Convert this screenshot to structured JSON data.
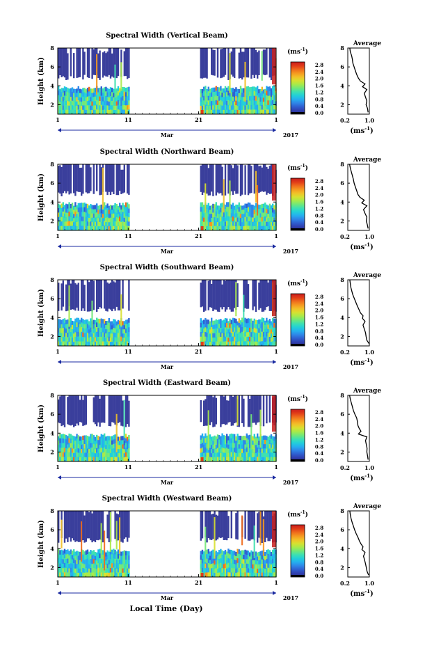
{
  "figure": {
    "xlabel": "Local Time (Day)",
    "colorbar_unit": "(ms",
    "unit_exp": "-1",
    "unit_close": ")",
    "month_label": "Mar",
    "year_label": "2017",
    "profile_title": "Average",
    "profile_xlabel_base": "(ms",
    "profile_xlabel_exp": "-1",
    "profile_xlabel_close": ")"
  },
  "colors": {
    "colormap": [
      "#2b2d8a",
      "#3040b0",
      "#2f5fd0",
      "#2f86e8",
      "#25b0ee",
      "#22d0d8",
      "#3fe0b0",
      "#72e878",
      "#a8ea4a",
      "#d8e030",
      "#f2c028",
      "#f59820",
      "#ef6a1c",
      "#e03a18",
      "#c81e1e"
    ],
    "background_band": "#3a3f9c"
  },
  "chart_data": [
    {
      "type": "heatmap",
      "title": "Spectral Width (Vertical Beam)",
      "xlabel": "Local Time (Day)",
      "ylabel": "Height (km)",
      "x_ticks": [
        "1",
        "11",
        "21",
        "1"
      ],
      "y_ticks": [
        "2",
        "4",
        "6",
        "8"
      ],
      "xlim": [
        1,
        32
      ],
      "ylim": [
        1,
        8
      ],
      "data_gap": [
        11,
        21
      ],
      "colorbar_ticks": [
        "0.0",
        "0.4",
        "0.8",
        "1.2",
        "1.6",
        "2.0",
        "2.4",
        "2.8"
      ],
      "profile": {
        "title": "Average",
        "x_ticks": [
          "0.2",
          "1.0"
        ],
        "y_ticks": [
          "2",
          "4",
          "6",
          "8"
        ],
        "heights": [
          1.2,
          1.6,
          2.0,
          2.4,
          2.8,
          3.2,
          3.6,
          3.9,
          4.2,
          4.5,
          4.8,
          5.2,
          5.6,
          6.0,
          6.4,
          6.8,
          7.2,
          7.6,
          8.0
        ],
        "values": [
          1.0,
          0.98,
          0.92,
          0.95,
          0.9,
          0.85,
          0.95,
          0.78,
          0.88,
          0.7,
          0.62,
          0.55,
          0.5,
          0.45,
          0.4,
          0.38,
          0.35,
          0.3,
          0.28
        ]
      }
    },
    {
      "type": "heatmap",
      "title": "Spectral Width (Northward Beam)",
      "xlabel": "Local Time (Day)",
      "ylabel": "Height (km)",
      "x_ticks": [
        "1",
        "11",
        "21",
        "1"
      ],
      "y_ticks": [
        "2",
        "4",
        "6",
        "8"
      ],
      "xlim": [
        1,
        32
      ],
      "ylim": [
        1,
        8
      ],
      "data_gap": [
        11,
        21
      ],
      "colorbar_ticks": [
        "0.0",
        "0.4",
        "0.8",
        "1.2",
        "1.6",
        "2.0",
        "2.4",
        "2.8"
      ],
      "profile": {
        "title": "Average",
        "x_ticks": [
          "0.2",
          "1.0"
        ],
        "y_ticks": [
          "2",
          "4",
          "6",
          "8"
        ],
        "heights": [
          1.2,
          1.6,
          2.0,
          2.4,
          2.8,
          3.2,
          3.6,
          3.9,
          4.2,
          4.5,
          4.8,
          5.2,
          5.6,
          6.0,
          6.4,
          6.8,
          7.2,
          7.6,
          8.0
        ],
        "values": [
          1.0,
          0.97,
          0.93,
          0.95,
          0.88,
          0.82,
          0.95,
          0.75,
          0.85,
          0.68,
          0.6,
          0.55,
          0.5,
          0.45,
          0.42,
          0.38,
          0.34,
          0.3,
          0.27
        ]
      }
    },
    {
      "type": "heatmap",
      "title": "Spectral Width (Southward Beam)",
      "xlabel": "Local Time (Day)",
      "ylabel": "Height (km)",
      "x_ticks": [
        "1",
        "11",
        "21",
        "1"
      ],
      "y_ticks": [
        "2",
        "4",
        "6",
        "8"
      ],
      "xlim": [
        1,
        32
      ],
      "ylim": [
        1,
        8
      ],
      "data_gap": [
        11,
        21
      ],
      "colorbar_ticks": [
        "0.0",
        "0.4",
        "0.8",
        "1.2",
        "1.6",
        "2.0",
        "2.4",
        "2.8"
      ],
      "profile": {
        "title": "Average",
        "x_ticks": [
          "0.2",
          "1.0"
        ],
        "y_ticks": [
          "2",
          "4",
          "6",
          "8"
        ],
        "heights": [
          1.2,
          1.6,
          2.0,
          2.4,
          2.8,
          3.2,
          3.6,
          3.9,
          4.2,
          4.5,
          4.8,
          5.2,
          5.6,
          6.0,
          6.4,
          6.8,
          7.2,
          7.6,
          8.0
        ],
        "values": [
          1.05,
          0.95,
          0.92,
          0.9,
          0.85,
          0.8,
          0.88,
          0.78,
          0.8,
          0.7,
          0.65,
          0.58,
          0.52,
          0.46,
          0.4,
          0.36,
          0.32,
          0.3,
          0.28
        ]
      }
    },
    {
      "type": "heatmap",
      "title": "Spectral Width (Eastward Beam)",
      "xlabel": "Local Time (Day)",
      "ylabel": "Height (km)",
      "x_ticks": [
        "1",
        "11",
        "21",
        "1"
      ],
      "y_ticks": [
        "2",
        "4",
        "6",
        "8"
      ],
      "xlim": [
        1,
        32
      ],
      "ylim": [
        1,
        8
      ],
      "data_gap": [
        11,
        21
      ],
      "colorbar_ticks": [
        "0.0",
        "0.4",
        "0.8",
        "1.2",
        "1.6",
        "2.0",
        "2.4",
        "2.8"
      ],
      "profile": {
        "title": "Average",
        "x_ticks": [
          "0.2",
          "1.0"
        ],
        "y_ticks": [
          "2",
          "4",
          "6",
          "8"
        ],
        "heights": [
          1.2,
          1.6,
          2.0,
          2.4,
          2.8,
          3.2,
          3.6,
          3.9,
          4.2,
          4.5,
          4.8,
          5.2,
          5.6,
          6.0,
          6.4,
          6.8,
          7.2,
          7.6,
          8.0
        ],
        "values": [
          1.0,
          0.98,
          0.95,
          0.96,
          0.93,
          0.9,
          0.95,
          0.62,
          0.72,
          0.65,
          0.6,
          0.58,
          0.55,
          0.48,
          0.42,
          0.38,
          0.34,
          0.3,
          0.27
        ]
      }
    },
    {
      "type": "heatmap",
      "title": "Spectral Width (Westward Beam)",
      "xlabel": "Local Time (Day)",
      "ylabel": "Height (km)",
      "x_ticks": [
        "1",
        "11",
        "21",
        "1"
      ],
      "y_ticks": [
        "2",
        "4",
        "6",
        "8"
      ],
      "xlim": [
        1,
        32
      ],
      "ylim": [
        1,
        8
      ],
      "data_gap": [
        11,
        21
      ],
      "colorbar_ticks": [
        "0.0",
        "0.4",
        "0.8",
        "1.2",
        "1.6",
        "2.0",
        "2.4",
        "2.8"
      ],
      "profile": {
        "title": "Average",
        "x_ticks": [
          "0.2",
          "1.0"
        ],
        "y_ticks": [
          "2",
          "4",
          "6",
          "8"
        ],
        "heights": [
          1.2,
          1.6,
          2.0,
          2.4,
          2.8,
          3.2,
          3.6,
          3.9,
          4.2,
          4.5,
          4.8,
          5.2,
          5.6,
          6.0,
          6.4,
          6.8,
          7.2,
          7.6,
          8.0
        ],
        "values": [
          1.02,
          0.96,
          0.93,
          0.9,
          0.86,
          0.82,
          0.88,
          0.76,
          0.8,
          0.72,
          0.66,
          0.6,
          0.53,
          0.47,
          0.42,
          0.37,
          0.33,
          0.3,
          0.28
        ]
      }
    }
  ]
}
